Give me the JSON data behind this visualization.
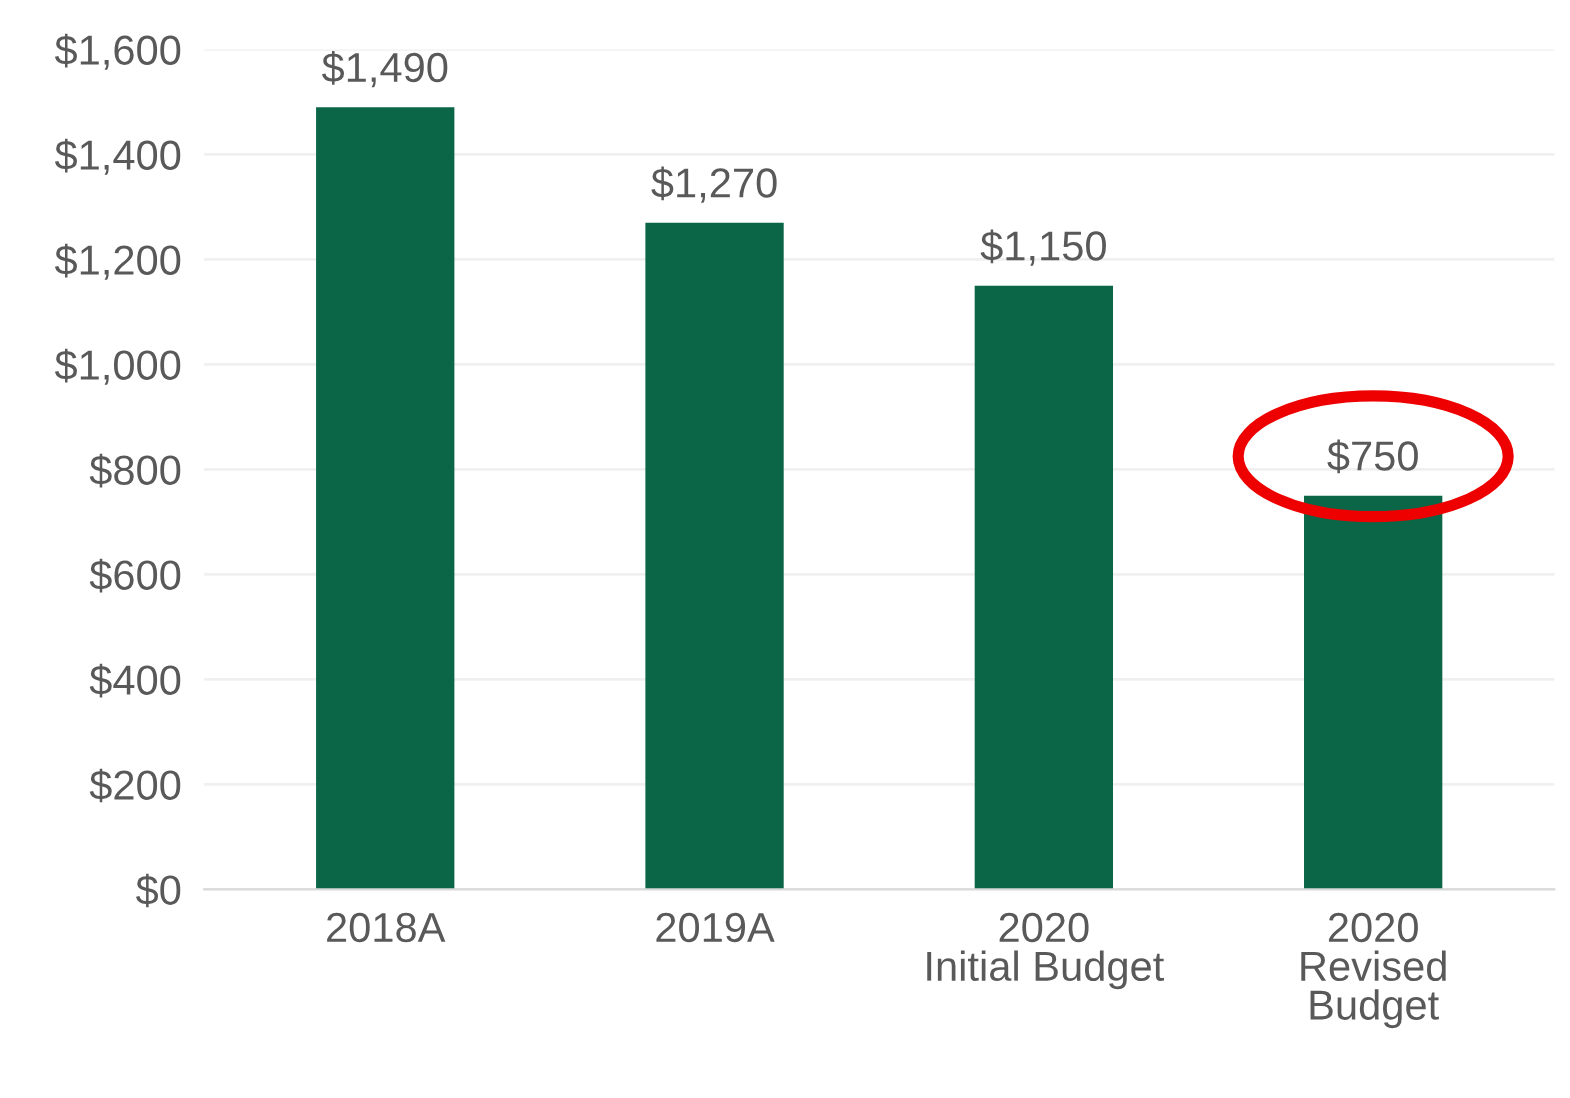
{
  "chart_data": {
    "type": "bar",
    "categories": [
      "2018A",
      "2019A",
      "2020\nInitial Budget",
      "2020\nRevised\nBudget"
    ],
    "values": [
      1490,
      1270,
      1150,
      750
    ],
    "color": "#0a6647",
    "value_labels": [
      "$1,490",
      "$1,270",
      "$1,150",
      "$750"
    ],
    "ylim": [
      0,
      1600
    ],
    "yticks": [
      {
        "value": 0,
        "label": "$0"
      },
      {
        "value": 200,
        "label": "$200"
      },
      {
        "value": 400,
        "label": "$400"
      },
      {
        "value": 600,
        "label": "$600"
      },
      {
        "value": 800,
        "label": "$800"
      },
      {
        "value": 1000,
        "label": "$1,000"
      },
      {
        "value": 1200,
        "label": "$1,200"
      },
      {
        "value": 1400,
        "label": "$1,400"
      },
      {
        "value": 1600,
        "label": "$1,600"
      }
    ],
    "grid": "y"
  }
}
